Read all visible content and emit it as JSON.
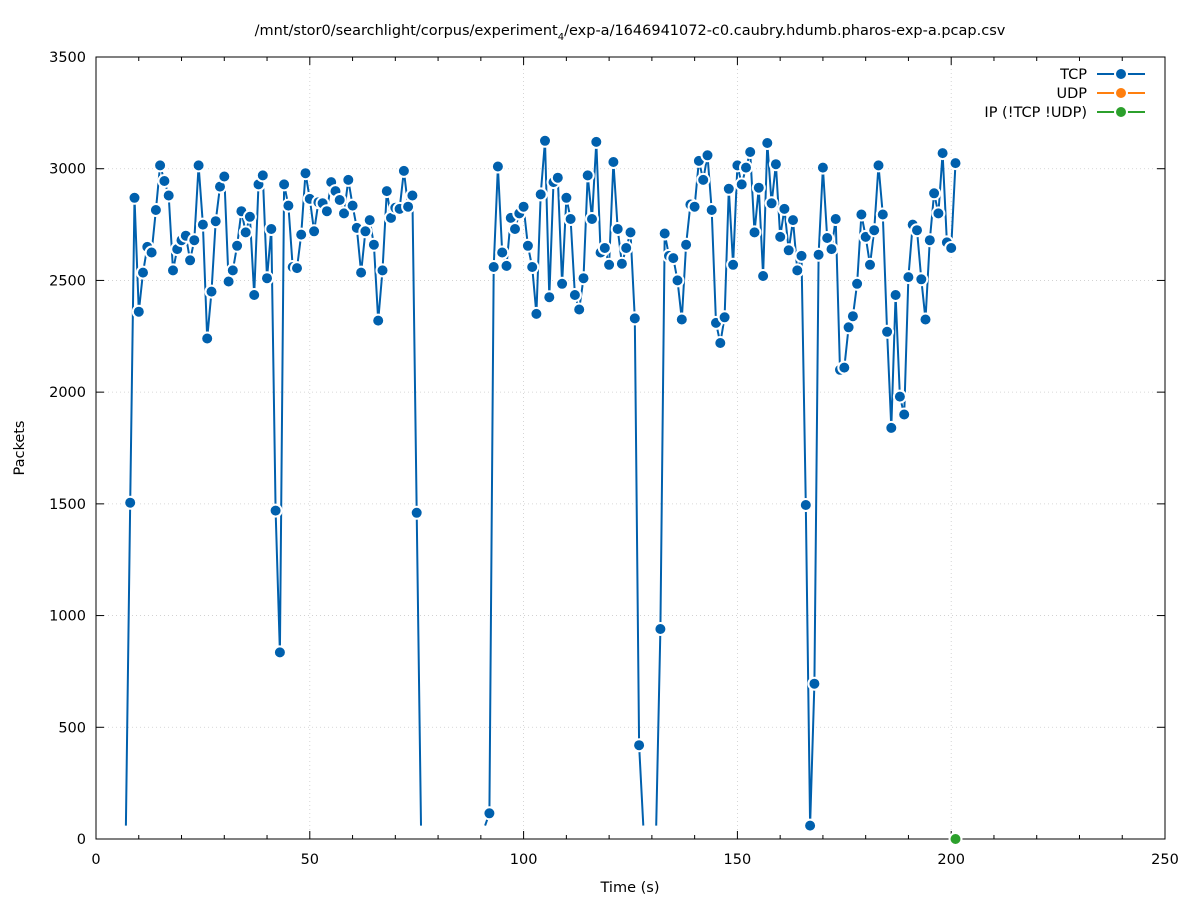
{
  "chart_data": {
    "type": "line",
    "title": "/mnt/stor0/searchlight/corpus/experiment",
    "title_subscript": "4",
    "title_suffix": "/exp-a/1646941072-c0.caubry.hdumb.pharos-exp-a.pcap.csv",
    "xlabel": "Time (s)",
    "ylabel": "Packets",
    "xlim": [
      0,
      250
    ],
    "ylim": [
      0,
      3500
    ],
    "x_ticks": [
      0,
      50,
      100,
      150,
      200,
      250
    ],
    "y_ticks": [
      0,
      500,
      1000,
      1500,
      2000,
      2500,
      3000,
      3500
    ],
    "grid": true,
    "legend_position": "top-right",
    "series": [
      {
        "name": "TCP",
        "color": "#0060ad",
        "segments": [
          [
            [
              7,
              60
            ],
            [
              8,
              1505
            ],
            [
              9,
              2870
            ],
            [
              10,
              2360
            ],
            [
              11,
              2535
            ],
            [
              12,
              2650
            ],
            [
              13,
              2625
            ],
            [
              14,
              2815
            ],
            [
              15,
              3015
            ],
            [
              16,
              2945
            ],
            [
              17,
              2880
            ],
            [
              18,
              2545
            ],
            [
              19,
              2640
            ],
            [
              20,
              2680
            ],
            [
              21,
              2700
            ],
            [
              22,
              2590
            ],
            [
              23,
              2680
            ],
            [
              24,
              3015
            ],
            [
              25,
              2750
            ],
            [
              26,
              2240
            ],
            [
              27,
              2450
            ],
            [
              28,
              2765
            ],
            [
              29,
              2920
            ],
            [
              30,
              2965
            ],
            [
              31,
              2495
            ],
            [
              32,
              2545
            ],
            [
              33,
              2655
            ],
            [
              34,
              2810
            ],
            [
              35,
              2715
            ],
            [
              36,
              2785
            ],
            [
              37,
              2435
            ],
            [
              38,
              2930
            ],
            [
              39,
              2970
            ],
            [
              40,
              2510
            ],
            [
              41,
              2730
            ],
            [
              42,
              1470
            ],
            [
              43,
              835
            ],
            [
              44,
              2930
            ],
            [
              45,
              2835
            ],
            [
              46,
              2560
            ],
            [
              47,
              2555
            ],
            [
              48,
              2705
            ],
            [
              49,
              2980
            ],
            [
              50,
              2865
            ],
            [
              51,
              2720
            ],
            [
              52,
              2850
            ],
            [
              53,
              2845
            ],
            [
              54,
              2810
            ],
            [
              55,
              2940
            ],
            [
              56,
              2900
            ],
            [
              57,
              2860
            ],
            [
              58,
              2800
            ],
            [
              59,
              2950
            ],
            [
              60,
              2835
            ],
            [
              61,
              2735
            ],
            [
              62,
              2535
            ],
            [
              63,
              2720
            ],
            [
              64,
              2770
            ],
            [
              65,
              2660
            ],
            [
              66,
              2320
            ],
            [
              67,
              2545
            ],
            [
              68,
              2900
            ],
            [
              69,
              2780
            ],
            [
              70,
              2825
            ],
            [
              71,
              2820
            ],
            [
              72,
              2990
            ],
            [
              73,
              2830
            ],
            [
              74,
              2880
            ],
            [
              75,
              1460
            ],
            [
              76,
              60
            ]
          ],
          [
            [
              91,
              60
            ],
            [
              92,
              115
            ],
            [
              93,
              2560
            ],
            [
              94,
              3010
            ],
            [
              95,
              2625
            ],
            [
              96,
              2565
            ],
            [
              97,
              2780
            ],
            [
              98,
              2730
            ],
            [
              99,
              2800
            ],
            [
              100,
              2830
            ],
            [
              101,
              2655
            ],
            [
              102,
              2560
            ],
            [
              103,
              2350
            ],
            [
              104,
              2885
            ],
            [
              105,
              3125
            ],
            [
              106,
              2425
            ],
            [
              107,
              2940
            ],
            [
              108,
              2960
            ],
            [
              109,
              2485
            ],
            [
              110,
              2870
            ],
            [
              111,
              2775
            ],
            [
              112,
              2435
            ],
            [
              113,
              2370
            ],
            [
              114,
              2510
            ],
            [
              115,
              2970
            ],
            [
              116,
              2775
            ],
            [
              117,
              3120
            ],
            [
              118,
              2625
            ],
            [
              119,
              2645
            ],
            [
              120,
              2570
            ],
            [
              121,
              3030
            ],
            [
              122,
              2730
            ],
            [
              123,
              2575
            ],
            [
              124,
              2645
            ],
            [
              125,
              2715
            ],
            [
              126,
              2330
            ],
            [
              127,
              420
            ],
            [
              128,
              60
            ]
          ],
          [
            [
              131,
              60
            ],
            [
              132,
              940
            ],
            [
              133,
              2710
            ],
            [
              134,
              2610
            ],
            [
              135,
              2600
            ],
            [
              136,
              2500
            ],
            [
              137,
              2325
            ],
            [
              138,
              2660
            ],
            [
              139,
              2840
            ],
            [
              140,
              2830
            ],
            [
              141,
              3035
            ],
            [
              142,
              2950
            ],
            [
              143,
              3060
            ],
            [
              144,
              2815
            ],
            [
              145,
              2310
            ],
            [
              146,
              2220
            ],
            [
              147,
              2335
            ],
            [
              148,
              2910
            ],
            [
              149,
              2570
            ],
            [
              150,
              3015
            ],
            [
              151,
              2930
            ],
            [
              152,
              3005
            ],
            [
              153,
              3075
            ],
            [
              154,
              2715
            ],
            [
              155,
              2915
            ],
            [
              156,
              2520
            ],
            [
              157,
              3115
            ],
            [
              158,
              2845
            ],
            [
              159,
              3020
            ],
            [
              160,
              2695
            ],
            [
              161,
              2820
            ],
            [
              162,
              2635
            ],
            [
              163,
              2770
            ],
            [
              164,
              2545
            ],
            [
              165,
              2610
            ],
            [
              166,
              1495
            ],
            [
              167,
              60
            ],
            [
              168,
              695
            ],
            [
              169,
              2615
            ],
            [
              170,
              3005
            ],
            [
              171,
              2690
            ],
            [
              172,
              2640
            ],
            [
              173,
              2775
            ],
            [
              174,
              2100
            ],
            [
              175,
              2110
            ],
            [
              176,
              2290
            ],
            [
              177,
              2340
            ],
            [
              178,
              2485
            ],
            [
              179,
              2795
            ],
            [
              180,
              2695
            ],
            [
              181,
              2570
            ],
            [
              182,
              2725
            ],
            [
              183,
              3015
            ],
            [
              184,
              2795
            ],
            [
              185,
              2270
            ],
            [
              186,
              1840
            ],
            [
              187,
              2435
            ],
            [
              188,
              1980
            ],
            [
              189,
              1900
            ],
            [
              190,
              2515
            ],
            [
              191,
              2750
            ],
            [
              192,
              2725
            ],
            [
              193,
              2505
            ],
            [
              194,
              2325
            ],
            [
              195,
              2680
            ],
            [
              196,
              2890
            ],
            [
              197,
              2800
            ],
            [
              198,
              3070
            ],
            [
              199,
              2670
            ],
            [
              200,
              2645
            ],
            [
              201,
              3025
            ]
          ]
        ]
      },
      {
        "name": "UDP",
        "color": "#ff7f0e",
        "segments": []
      },
      {
        "name": "IP (!TCP  !UDP)",
        "color": "#2ca02c",
        "segments": [
          [
            [
              201,
              0
            ]
          ]
        ]
      }
    ]
  }
}
